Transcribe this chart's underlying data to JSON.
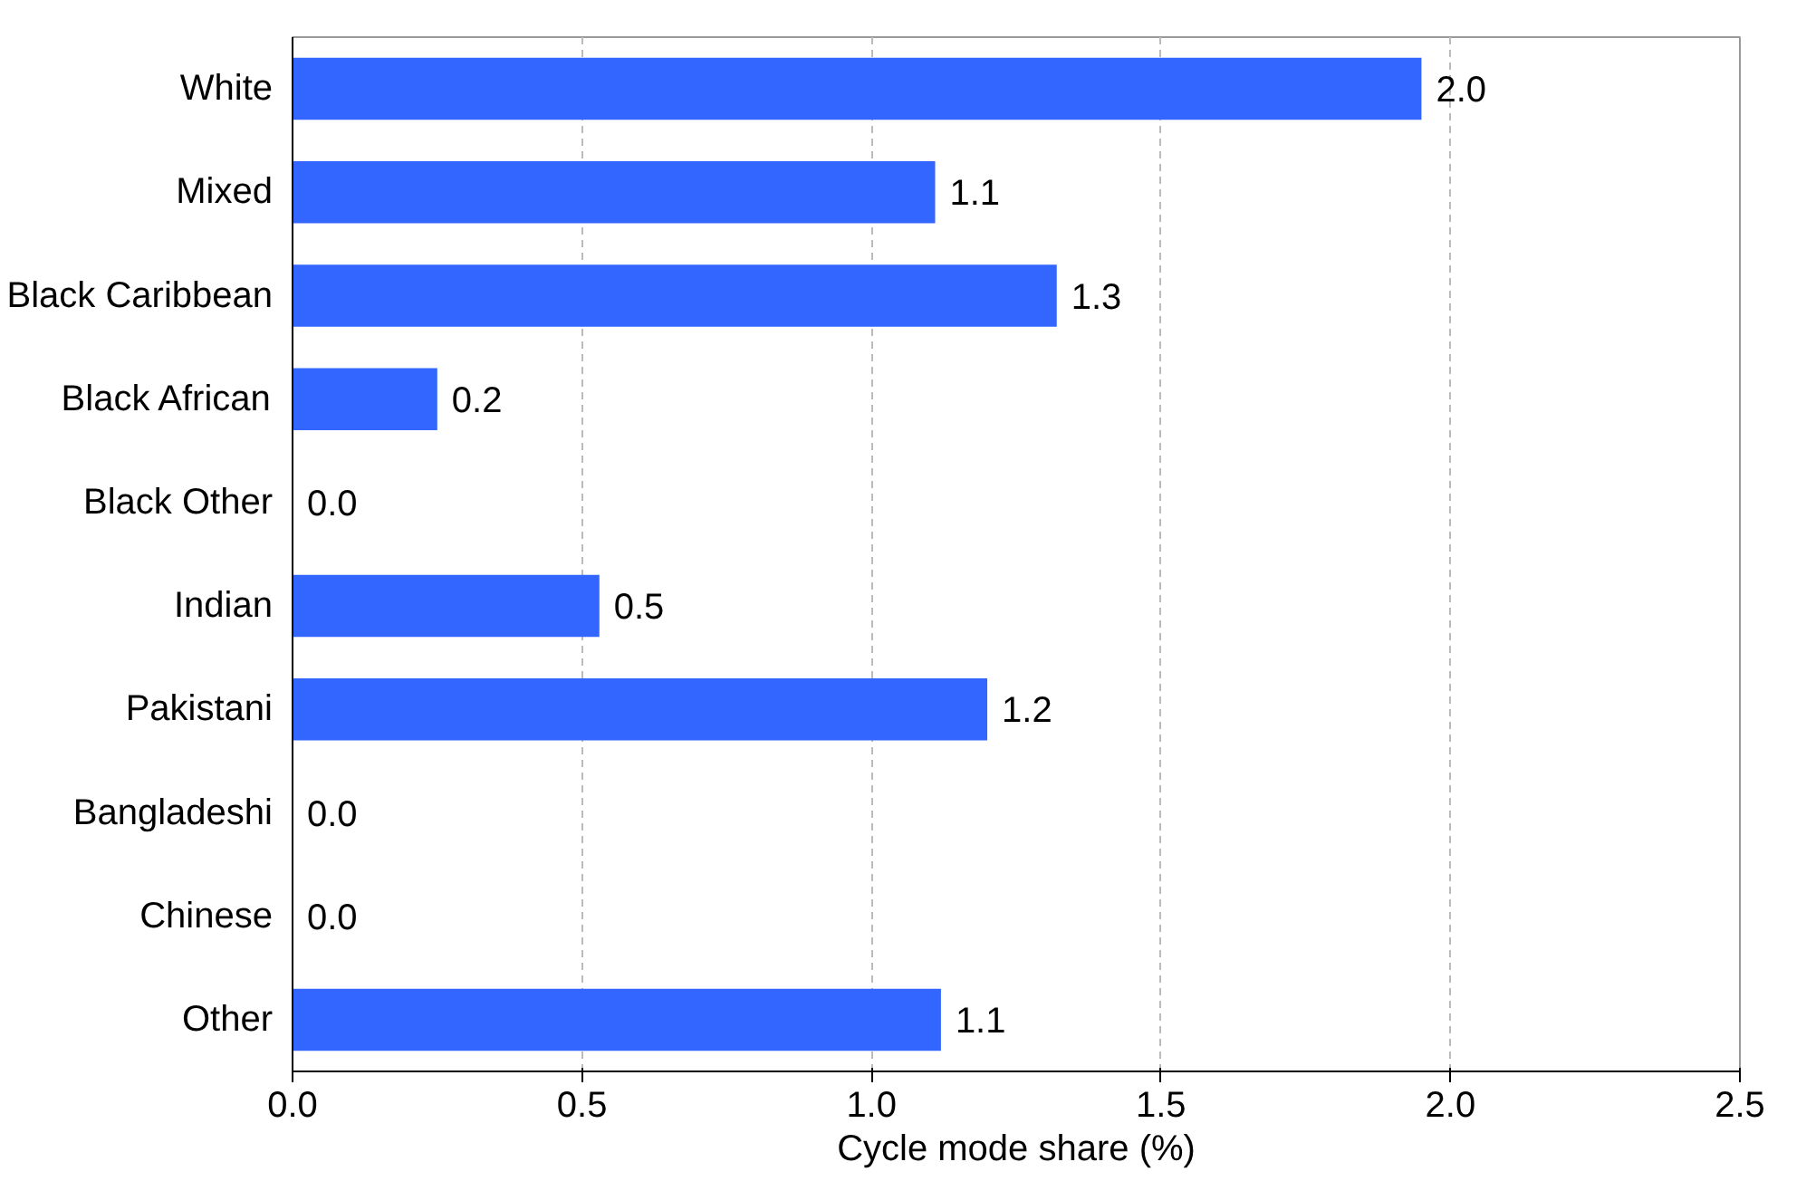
{
  "chart_data": {
    "type": "bar",
    "orientation": "horizontal",
    "xlabel": "Cycle mode share (%)",
    "categories": [
      "White",
      "Mixed",
      "Black Caribbean",
      "Black African",
      "Black Other",
      "Indian",
      "Pakistani",
      "Bangladeshi",
      "Chinese",
      "Other"
    ],
    "values": [
      1.95,
      1.11,
      1.32,
      0.25,
      0,
      0.53,
      1.2,
      0,
      0,
      1.12
    ],
    "value_labels": [
      "2.0",
      "1.1",
      "1.3",
      "0.2",
      "0.0",
      "0.5",
      "1.2",
      "0.0",
      "0.0",
      "1.1"
    ],
    "color": "#3366ff",
    "xlim": [
      0,
      2.5
    ],
    "xticks": [
      "0.0",
      "0.5",
      "1.0",
      "1.5",
      "2.0",
      "2.5"
    ],
    "grid": "x"
  }
}
